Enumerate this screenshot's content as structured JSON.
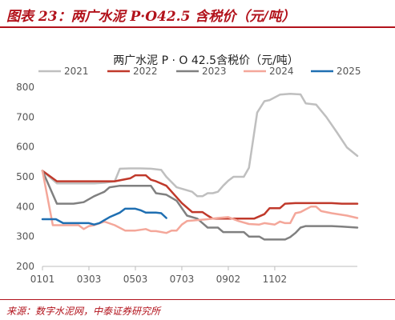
{
  "figure": {
    "label": "图表 23：两广水泥 P·O42.5 含税价（元/吨）",
    "source": "来源：数字水泥网，中泰证券研究所"
  },
  "chart_data": {
    "type": "line",
    "title": "两广水泥 P · O 42.5含税价（元/吨）",
    "xlabel": "",
    "ylabel": "",
    "ylim": [
      200,
      800
    ],
    "yticks": [
      "200",
      "300",
      "400",
      "500",
      "600",
      "700",
      "800"
    ],
    "x_tick_labels": [
      "0101",
      "0303",
      "0503",
      "0703",
      "0902",
      "1102"
    ],
    "grid": false,
    "legend_position": "top",
    "series": [
      {
        "name": "2021",
        "color": "#bfbfbf",
        "points": [
          [
            0,
            520
          ],
          [
            1.4,
            478
          ],
          [
            3,
            478
          ],
          [
            5,
            478
          ],
          [
            6,
            480
          ],
          [
            7,
            485
          ],
          [
            7.5,
            527
          ],
          [
            8.5,
            528
          ],
          [
            9.5,
            528
          ],
          [
            10.5,
            527
          ],
          [
            11.5,
            523
          ],
          [
            12,
            500
          ],
          [
            13,
            465
          ],
          [
            14.5,
            450
          ],
          [
            15,
            435
          ],
          [
            15.5,
            435
          ],
          [
            16,
            445
          ],
          [
            16.5,
            445
          ],
          [
            17,
            450
          ],
          [
            17.5,
            470
          ],
          [
            18,
            487
          ],
          [
            18.5,
            500
          ],
          [
            19.5,
            500
          ],
          [
            20,
            530
          ],
          [
            20.8,
            715
          ],
          [
            21.5,
            753
          ],
          [
            22,
            757
          ],
          [
            23,
            775
          ],
          [
            24,
            778
          ],
          [
            25,
            776
          ],
          [
            25.5,
            746
          ],
          [
            26.5,
            742
          ],
          [
            27.5,
            700
          ],
          [
            28.5,
            650
          ],
          [
            29.5,
            598
          ],
          [
            30.5,
            570
          ]
        ]
      },
      {
        "name": "2022",
        "color": "#c0392b",
        "points": [
          [
            0,
            520
          ],
          [
            1.4,
            485
          ],
          [
            3,
            485
          ],
          [
            5,
            485
          ],
          [
            7,
            485
          ],
          [
            8.5,
            495
          ],
          [
            9,
            505
          ],
          [
            10,
            505
          ],
          [
            10.5,
            490
          ],
          [
            11,
            485
          ],
          [
            12,
            470
          ],
          [
            13.5,
            412
          ],
          [
            14.5,
            382
          ],
          [
            15.5,
            382
          ],
          [
            16,
            370
          ],
          [
            16.5,
            360
          ],
          [
            17,
            360
          ],
          [
            18,
            360
          ],
          [
            19,
            360
          ],
          [
            20.5,
            360
          ],
          [
            21.5,
            375
          ],
          [
            22,
            395
          ],
          [
            23,
            395
          ],
          [
            23.5,
            410
          ],
          [
            24.5,
            412
          ],
          [
            26,
            412
          ],
          [
            27,
            412
          ],
          [
            28,
            412
          ],
          [
            29,
            410
          ],
          [
            30.5,
            410
          ]
        ]
      },
      {
        "name": "2023",
        "color": "#808080",
        "points": [
          [
            0,
            520
          ],
          [
            1.4,
            410
          ],
          [
            3,
            410
          ],
          [
            4,
            415
          ],
          [
            5,
            435
          ],
          [
            6,
            450
          ],
          [
            6.5,
            465
          ],
          [
            7.5,
            470
          ],
          [
            9,
            470
          ],
          [
            10.5,
            470
          ],
          [
            11,
            445
          ],
          [
            12,
            440
          ],
          [
            13,
            420
          ],
          [
            14,
            370
          ],
          [
            15,
            360
          ],
          [
            16,
            330
          ],
          [
            17,
            330
          ],
          [
            17.5,
            315
          ],
          [
            18.5,
            315
          ],
          [
            19.5,
            315
          ],
          [
            20,
            300
          ],
          [
            20.5,
            300
          ],
          [
            21,
            300
          ],
          [
            21.5,
            290
          ],
          [
            22.5,
            290
          ],
          [
            23.5,
            290
          ],
          [
            24,
            298
          ],
          [
            24.5,
            312
          ],
          [
            25,
            330
          ],
          [
            25.5,
            335
          ],
          [
            26.5,
            335
          ],
          [
            28,
            335
          ],
          [
            29,
            333
          ],
          [
            30.5,
            330
          ]
        ]
      },
      {
        "name": "2024",
        "color": "#f4a79a",
        "points": [
          [
            0,
            520
          ],
          [
            1,
            338
          ],
          [
            2.5,
            338
          ],
          [
            3.5,
            338
          ],
          [
            4,
            325
          ],
          [
            4.5,
            335
          ],
          [
            5,
            338
          ],
          [
            6,
            350
          ],
          [
            7,
            338
          ],
          [
            8,
            320
          ],
          [
            9,
            320
          ],
          [
            10,
            325
          ],
          [
            10.5,
            318
          ],
          [
            11,
            318
          ],
          [
            12,
            312
          ],
          [
            12.5,
            320
          ],
          [
            13,
            320
          ],
          [
            13.5,
            340
          ],
          [
            14,
            352
          ],
          [
            15,
            355
          ],
          [
            16,
            358
          ],
          [
            17,
            362
          ],
          [
            18,
            365
          ],
          [
            19,
            352
          ],
          [
            20,
            342
          ],
          [
            21,
            340
          ],
          [
            21.5,
            345
          ],
          [
            22.5,
            340
          ],
          [
            23,
            350
          ],
          [
            23.5,
            345
          ],
          [
            24,
            345
          ],
          [
            24.5,
            378
          ],
          [
            25,
            382
          ],
          [
            26,
            400
          ],
          [
            26.5,
            400
          ],
          [
            27,
            385
          ],
          [
            28,
            378
          ],
          [
            29.5,
            370
          ],
          [
            30.5,
            362
          ]
        ]
      },
      {
        "name": "2025",
        "color": "#1f6fb2",
        "points": [
          [
            0,
            358
          ],
          [
            1.3,
            358
          ],
          [
            2,
            345
          ],
          [
            3.5,
            345
          ],
          [
            4.5,
            345
          ],
          [
            5,
            340
          ],
          [
            5.5,
            345
          ],
          [
            6.5,
            365
          ],
          [
            7.5,
            380
          ],
          [
            8,
            393
          ],
          [
            9,
            393
          ],
          [
            9.5,
            388
          ],
          [
            10,
            380
          ],
          [
            11,
            380
          ],
          [
            11.5,
            378
          ],
          [
            12,
            362
          ]
        ]
      }
    ]
  }
}
